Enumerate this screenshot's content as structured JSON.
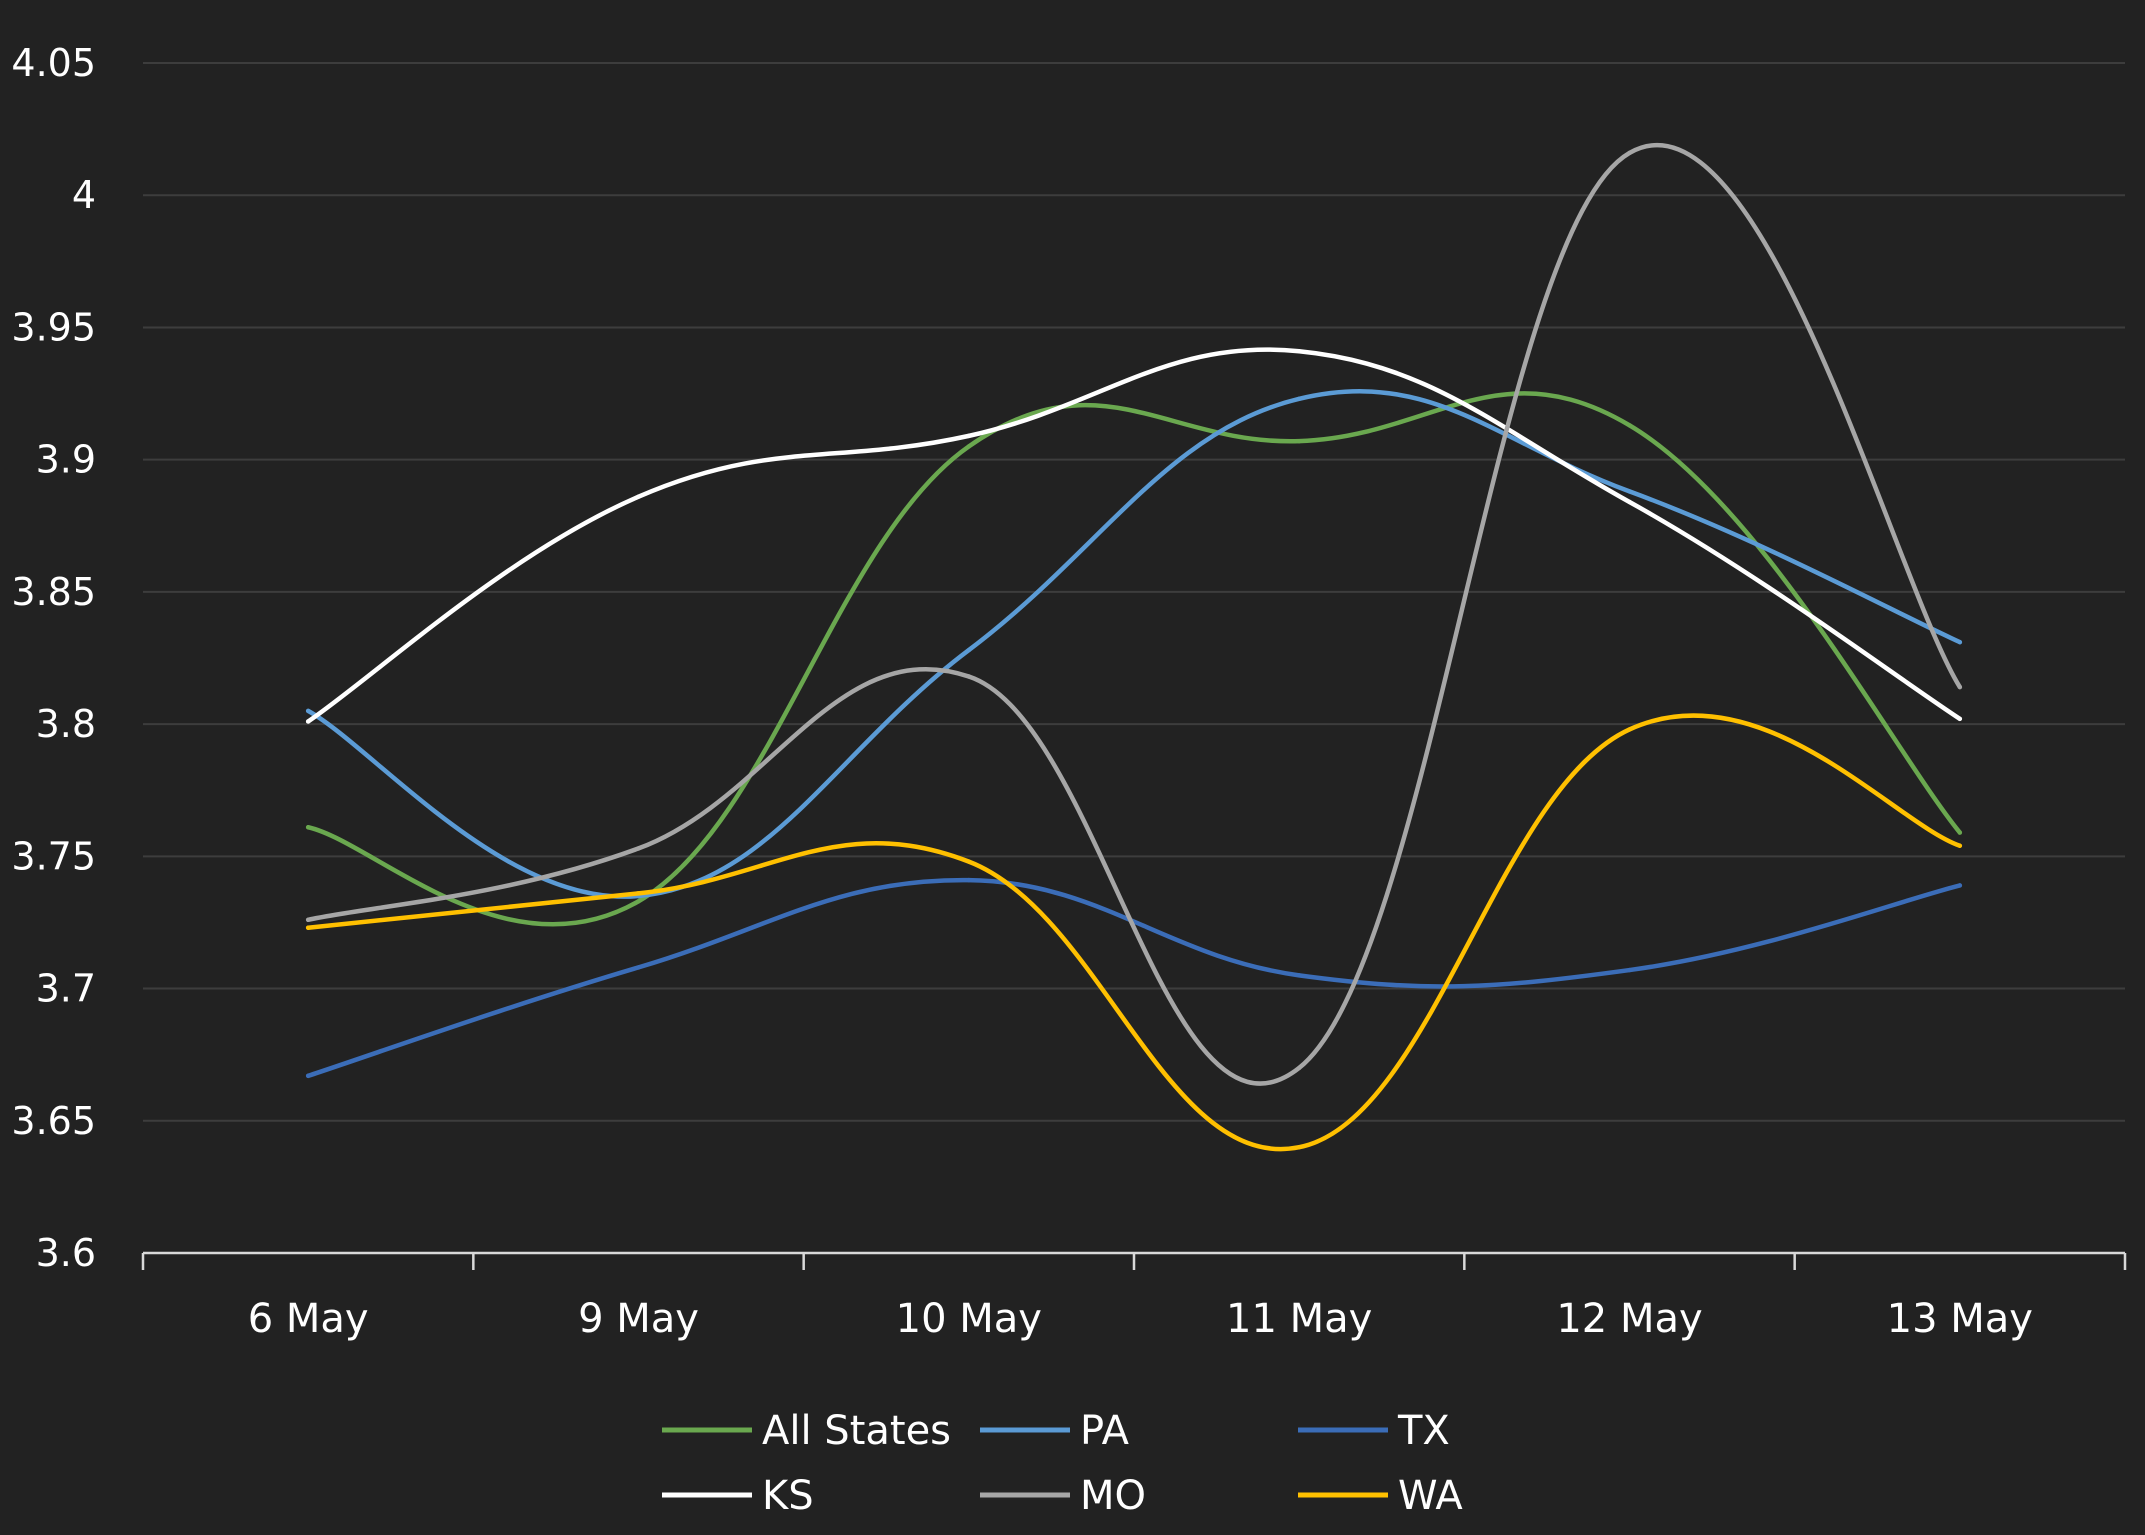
{
  "chart_data": {
    "type": "line",
    "title": "",
    "xlabel": "",
    "ylabel": "",
    "categories": [
      "6 May",
      "9 May",
      "10 May",
      "11 May",
      "12 May",
      "13 May"
    ],
    "ylim": [
      3.6,
      4.05
    ],
    "yticks": [
      3.6,
      3.65,
      3.7,
      3.75,
      3.8,
      3.85,
      3.9,
      3.95,
      4,
      4.05
    ],
    "ytick_labels": [
      "3.6",
      "3.65",
      "3.7",
      "3.75",
      "3.8",
      "3.85",
      "3.9",
      "3.95",
      "4",
      "4.05"
    ],
    "grid": "horizontal",
    "legend_position": "bottom",
    "smooth": true,
    "series": [
      {
        "name": "All States",
        "color": "#6AA84F",
        "values": [
          3.761,
          3.733,
          3.905,
          3.907,
          3.913,
          3.759
        ]
      },
      {
        "name": "PA",
        "color": "#5B9BD5",
        "values": [
          3.805,
          3.735,
          3.828,
          3.923,
          3.888,
          3.831
        ]
      },
      {
        "name": "TX",
        "color": "#3B6DB8",
        "values": [
          3.667,
          3.708,
          3.741,
          3.705,
          3.707,
          3.739
        ]
      },
      {
        "name": "KS",
        "color": "#FFFFFF",
        "values": [
          3.801,
          3.886,
          3.909,
          3.941,
          3.884,
          3.802
        ]
      },
      {
        "name": "MO",
        "color": "#A6A6A6",
        "values": [
          3.726,
          3.753,
          3.818,
          3.67,
          4.016,
          3.814
        ]
      },
      {
        "name": "WA",
        "color": "#FFC000",
        "values": [
          3.723,
          3.736,
          3.748,
          3.64,
          3.798,
          3.754
        ]
      }
    ]
  }
}
